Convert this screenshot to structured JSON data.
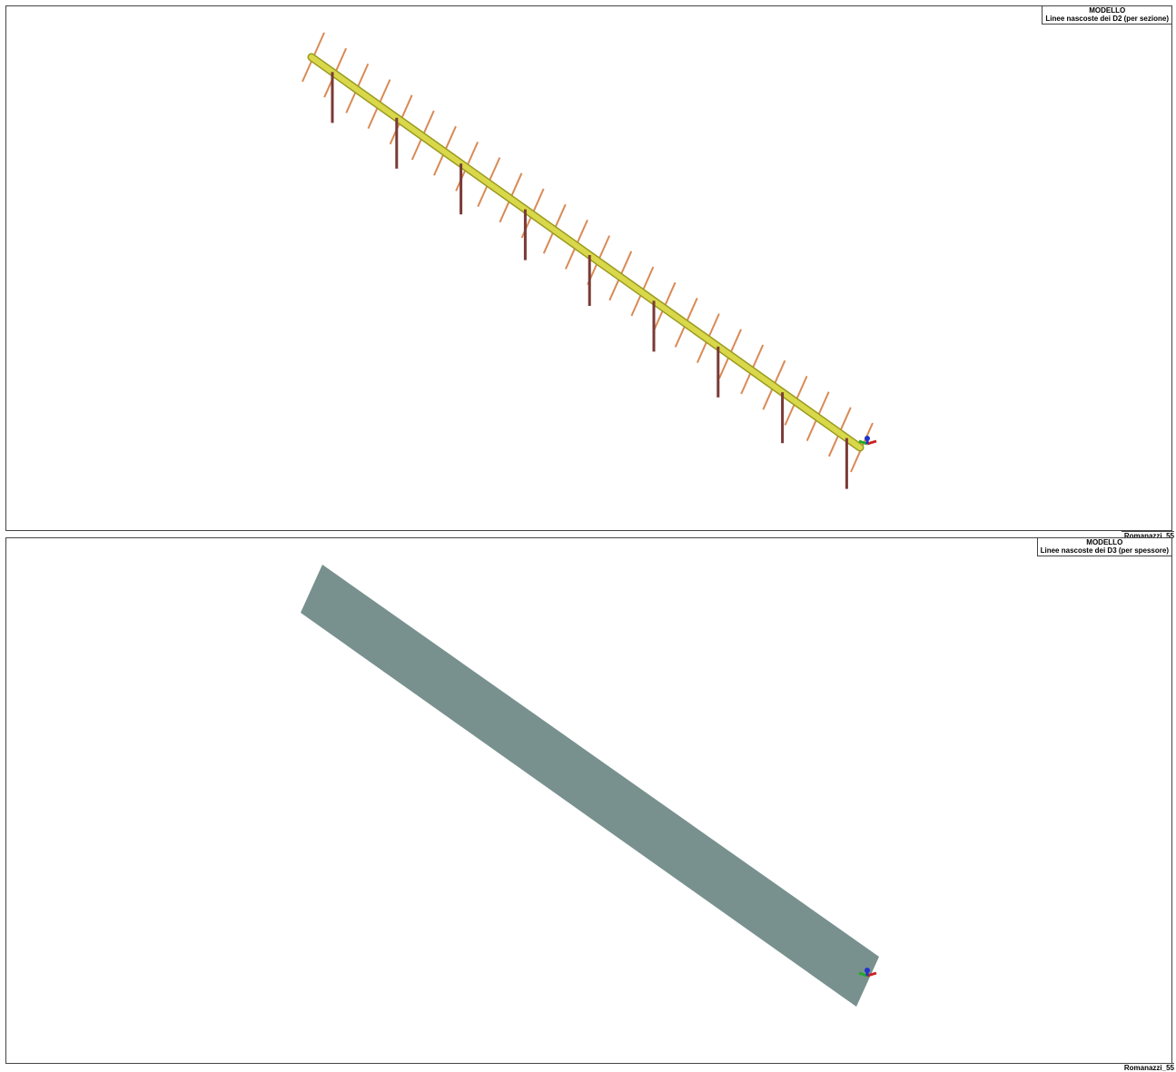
{
  "views": [
    {
      "heading": "MODELLO",
      "subheading": "Linee nascoste dei D2 (per sezione)",
      "footer": "Romanazzi_55"
    },
    {
      "heading": "MODELLO",
      "subheading": "Linee nascoste dei D3 (per spessore)",
      "footer": "Romanazzi_55"
    }
  ],
  "colors": {
    "beam": "#d8d84a",
    "beam_edge": "#9a9a20",
    "rib": "#d98a55",
    "pillar": "#7a3a36",
    "slab": "#78918f",
    "axis_x": "#cc2222",
    "axis_y": "#22aa22",
    "axis_z": "#2233cc"
  },
  "icons": [
    "axis-triad-icon"
  ]
}
